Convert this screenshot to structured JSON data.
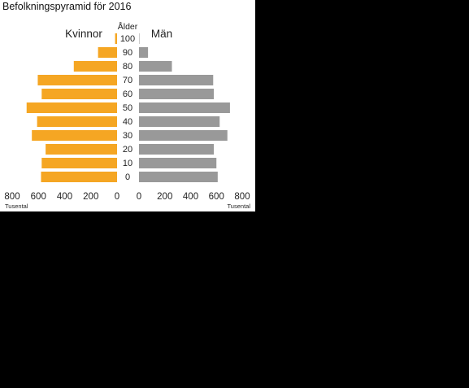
{
  "chart_data": {
    "type": "bar",
    "orientation": "horizontal-population-pyramid",
    "title": "Befolkningspyramid för 2016",
    "age_axis_label": "Ålder",
    "categories": [
      "0",
      "10",
      "20",
      "30",
      "40",
      "50",
      "60",
      "70",
      "80",
      "90",
      "100"
    ],
    "series": [
      {
        "name": "Kvinnor",
        "color": "#f5a623",
        "values": [
          580,
          575,
          545,
          650,
          610,
          690,
          575,
          605,
          330,
          145,
          15
        ]
      },
      {
        "name": "Män",
        "color": "#999999",
        "values": [
          610,
          600,
          580,
          685,
          625,
          705,
          580,
          575,
          255,
          70,
          3
        ]
      }
    ],
    "x_ticks": [
      "800",
      "600",
      "400",
      "200",
      "0"
    ],
    "xlim": [
      0,
      800
    ],
    "unit_label": "Tusental",
    "grid": false,
    "legend": "labels above bars: Kvinnor left, Män right"
  }
}
